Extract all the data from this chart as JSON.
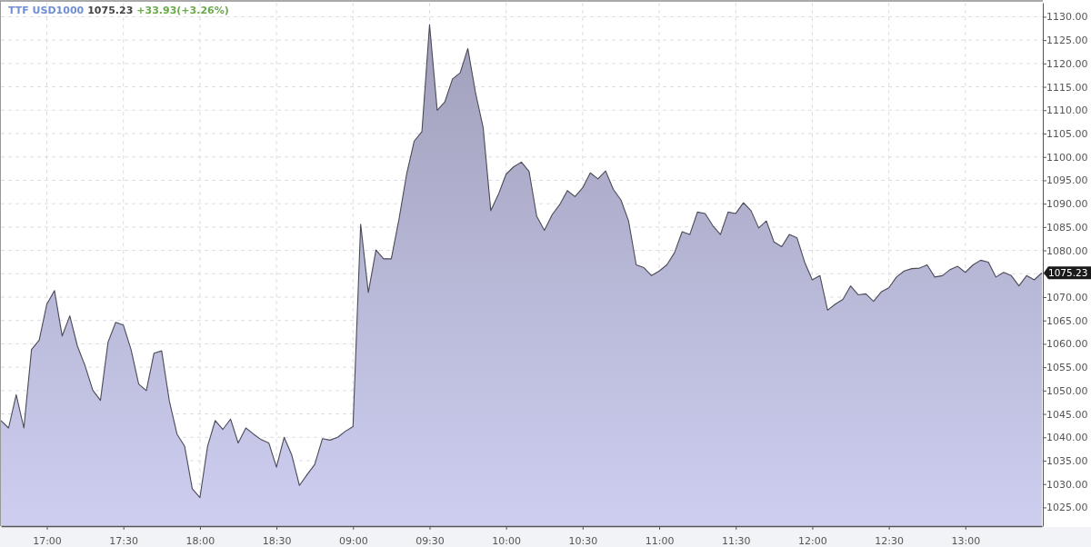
{
  "chart_data": {
    "type": "area",
    "title": "TTF USD1000",
    "subtitle": "1075.23",
    "annotations": [
      "+33.93(+3.26%)",
      "1075.23"
    ],
    "categories": [
      null,
      null,
      null,
      null,
      null,
      null,
      "17:00",
      null,
      null,
      null,
      null,
      null,
      null,
      null,
      null,
      null,
      "17:30",
      null,
      null,
      null,
      null,
      null,
      null,
      null,
      null,
      null,
      "18:00",
      null,
      null,
      null,
      null,
      null,
      null,
      null,
      null,
      null,
      "18:30",
      null,
      null,
      null,
      null,
      null,
      null,
      null,
      null,
      null,
      "09:00",
      null,
      null,
      null,
      null,
      null,
      null,
      null,
      null,
      null,
      "09:30",
      null,
      null,
      null,
      null,
      null,
      null,
      null,
      null,
      null,
      "10:00",
      null,
      null,
      null,
      null,
      null,
      null,
      null,
      null,
      null,
      "10:30",
      null,
      null,
      null,
      null,
      null,
      null,
      null,
      null,
      null,
      "11:00",
      null,
      null,
      null,
      null,
      null,
      null,
      null,
      null,
      null,
      "11:30",
      null,
      null,
      null,
      null,
      null,
      null,
      null,
      null,
      null,
      "12:00",
      null,
      null,
      null,
      null,
      null,
      null,
      null,
      null,
      null,
      "12:30",
      null,
      null,
      null,
      null,
      null,
      null,
      null,
      null,
      null,
      "13:00",
      null,
      null,
      null,
      null,
      null,
      null,
      null,
      null,
      null,
      null
    ],
    "series": [
      {
        "color": "#bcbcdc",
        "values": [
          1043.6,
          1042.0,
          1049.1,
          1042.0,
          1058.8,
          1060.8,
          1068.5,
          1071.4,
          1061.7,
          1066.0,
          1059.5,
          1055.3,
          1050.1,
          1047.9,
          1060.4,
          1064.6,
          1064.0,
          1058.8,
          1051.4,
          1050.0,
          1058.0,
          1058.5,
          1047.8,
          1040.7,
          1038.1,
          1029.0,
          1027.1,
          1038.1,
          1043.6,
          1041.7,
          1043.9,
          1038.8,
          1042.0,
          1040.7,
          1039.5,
          1038.8,
          1033.6,
          1040.0,
          1036.2,
          1029.7,
          1032.0,
          1034.2,
          1039.7,
          1039.4,
          1040.0,
          1041.3,
          1042.3,
          1085.6,
          1071.0,
          1080.1,
          1078.2,
          1078.2,
          1086.6,
          1096.3,
          1103.4,
          1105.4,
          1128.3,
          1110.0,
          1111.8,
          1116.7,
          1118.0,
          1123.2,
          1113.8,
          1106.3,
          1088.5,
          1092.0,
          1096.3,
          1097.9,
          1098.9,
          1096.9,
          1087.3,
          1084.3,
          1087.6,
          1089.8,
          1092.8,
          1091.5,
          1093.4,
          1096.6,
          1095.3,
          1097.0,
          1093.1,
          1090.8,
          1086.3,
          1076.9,
          1076.3,
          1074.6,
          1075.6,
          1076.9,
          1079.5,
          1084.0,
          1083.4,
          1088.2,
          1087.9,
          1085.3,
          1083.4,
          1088.2,
          1087.9,
          1090.2,
          1088.5,
          1084.8,
          1086.3,
          1081.8,
          1080.8,
          1083.4,
          1082.7,
          1077.5,
          1073.7,
          1074.6,
          1067.2,
          1068.5,
          1069.5,
          1072.4,
          1070.5,
          1070.7,
          1069.1,
          1071.1,
          1072.0,
          1074.3,
          1075.6,
          1076.1,
          1076.2,
          1076.9,
          1074.3,
          1074.6,
          1075.9,
          1076.6,
          1075.3,
          1076.9,
          1077.9,
          1077.5,
          1074.3,
          1075.3,
          1074.6,
          1072.4,
          1074.6,
          1073.7,
          1075.2
        ]
      }
    ],
    "ylim": [
      1021,
      1133
    ],
    "yticks": [
      {
        "value": 1025,
        "label": "1025.00"
      },
      {
        "value": 1030,
        "label": "1030.00"
      },
      {
        "value": 1035,
        "label": "1035.00"
      },
      {
        "value": 1040,
        "label": "1040.00"
      },
      {
        "value": 1045,
        "label": "1045.00"
      },
      {
        "value": 1050,
        "label": "1050.00"
      },
      {
        "value": 1055,
        "label": "1055.00"
      },
      {
        "value": 1060,
        "label": "1060.00"
      },
      {
        "value": 1065,
        "label": "1065.00"
      },
      {
        "value": 1070,
        "label": "1070.00"
      },
      {
        "value": 1075,
        "label": null
      },
      {
        "value": 1080,
        "label": "1080.00"
      },
      {
        "value": 1085,
        "label": "1085.00"
      },
      {
        "value": 1090,
        "label": "1090.00"
      },
      {
        "value": 1095,
        "label": "1095.00"
      },
      {
        "value": 1100,
        "label": "1100.00"
      },
      {
        "value": 1105,
        "label": "1105.00"
      },
      {
        "value": 1110,
        "label": "1110.00"
      },
      {
        "value": 1115,
        "label": "1115.00"
      },
      {
        "value": 1120,
        "label": "1120.00"
      },
      {
        "value": 1125,
        "label": "1125.00"
      },
      {
        "value": 1130,
        "label": "1130.00"
      }
    ],
    "grid": true
  }
}
